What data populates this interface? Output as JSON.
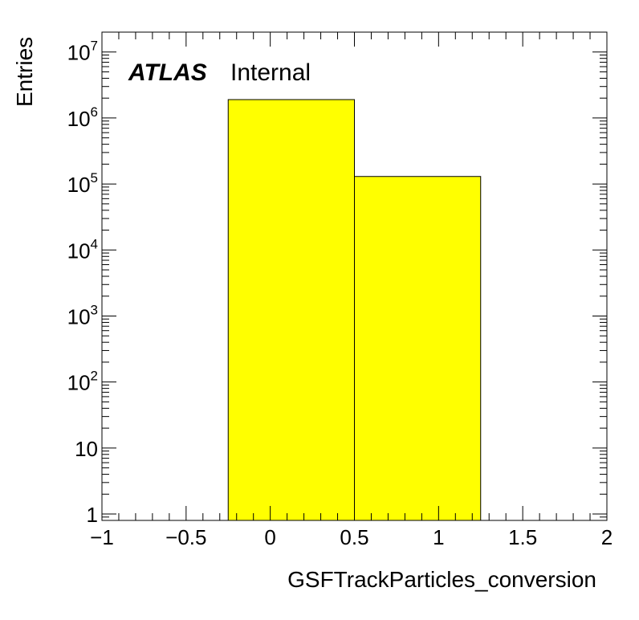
{
  "chart_data": {
    "type": "bar",
    "histogram": true,
    "xlabel": "GSFTrackParticles_conversion",
    "ylabel": "Entries",
    "xlim": [
      -1,
      2
    ],
    "ylim": [
      0.8,
      20000000
    ],
    "yscale": "log",
    "fill_color": "#ffff00",
    "edge_color": "#000000",
    "bins": [
      {
        "low": -0.25,
        "high": 0.5,
        "value": 1900000
      },
      {
        "low": 0.5,
        "high": 1.25,
        "value": 130000
      }
    ],
    "x_ticks": [
      {
        "value": -1,
        "label": "−1"
      },
      {
        "value": -0.5,
        "label": "−0.5"
      },
      {
        "value": 0,
        "label": "0"
      },
      {
        "value": 0.5,
        "label": "0.5"
      },
      {
        "value": 1,
        "label": "1"
      },
      {
        "value": 1.5,
        "label": "1.5"
      },
      {
        "value": 2,
        "label": "2"
      }
    ],
    "y_ticks": [
      {
        "value": 1,
        "base": "1",
        "exp": ""
      },
      {
        "value": 10,
        "base": "10",
        "exp": ""
      },
      {
        "value": 100,
        "base": "10",
        "exp": "2"
      },
      {
        "value": 1000,
        "base": "10",
        "exp": "3"
      },
      {
        "value": 10000,
        "base": "10",
        "exp": "4"
      },
      {
        "value": 100000,
        "base": "10",
        "exp": "5"
      },
      {
        "value": 1000000,
        "base": "10",
        "exp": "6"
      },
      {
        "value": 10000000,
        "base": "10",
        "exp": "7"
      }
    ],
    "annotation": {
      "bold": "ATLAS",
      "text": "Internal"
    }
  }
}
